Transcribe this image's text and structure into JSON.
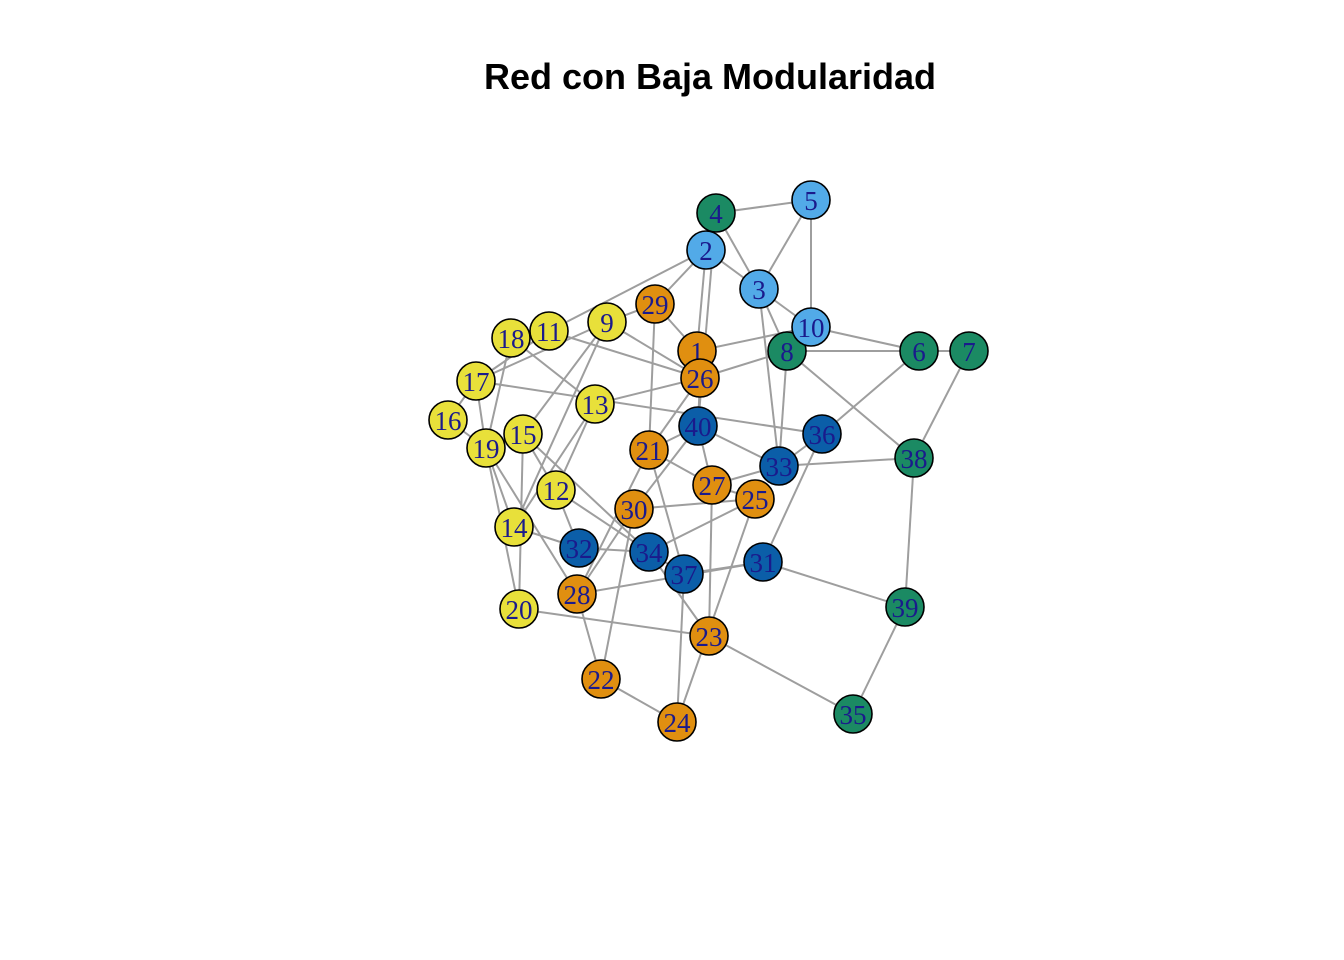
{
  "title": "Red con Baja Modularidad",
  "colors": {
    "community_1": "#e8e03a",
    "community_2": "#e08f10",
    "community_3": "#0b5ea8",
    "community_4": "#1b8a63",
    "community_5": "#52aae8",
    "edge": "#9e9e9e",
    "label": "#1a1a8c"
  },
  "nodes": [
    {
      "id": "1",
      "community": "community_2"
    },
    {
      "id": "2",
      "community": "community_5"
    },
    {
      "id": "3",
      "community": "community_5"
    },
    {
      "id": "4",
      "community": "community_4"
    },
    {
      "id": "5",
      "community": "community_5"
    },
    {
      "id": "6",
      "community": "community_4"
    },
    {
      "id": "7",
      "community": "community_4"
    },
    {
      "id": "8",
      "community": "community_4"
    },
    {
      "id": "9",
      "community": "community_1"
    },
    {
      "id": "10",
      "community": "community_5"
    },
    {
      "id": "11",
      "community": "community_1"
    },
    {
      "id": "12",
      "community": "community_1"
    },
    {
      "id": "13",
      "community": "community_1"
    },
    {
      "id": "14",
      "community": "community_1"
    },
    {
      "id": "15",
      "community": "community_1"
    },
    {
      "id": "16",
      "community": "community_1"
    },
    {
      "id": "17",
      "community": "community_1"
    },
    {
      "id": "18",
      "community": "community_1"
    },
    {
      "id": "19",
      "community": "community_1"
    },
    {
      "id": "20",
      "community": "community_1"
    },
    {
      "id": "21",
      "community": "community_2"
    },
    {
      "id": "22",
      "community": "community_2"
    },
    {
      "id": "23",
      "community": "community_2"
    },
    {
      "id": "24",
      "community": "community_2"
    },
    {
      "id": "25",
      "community": "community_2"
    },
    {
      "id": "26",
      "community": "community_2"
    },
    {
      "id": "27",
      "community": "community_2"
    },
    {
      "id": "28",
      "community": "community_2"
    },
    {
      "id": "29",
      "community": "community_2"
    },
    {
      "id": "30",
      "community": "community_2"
    },
    {
      "id": "31",
      "community": "community_3"
    },
    {
      "id": "32",
      "community": "community_3"
    },
    {
      "id": "33",
      "community": "community_3"
    },
    {
      "id": "34",
      "community": "community_3"
    },
    {
      "id": "35",
      "community": "community_4"
    },
    {
      "id": "36",
      "community": "community_3"
    },
    {
      "id": "37",
      "community": "community_3"
    },
    {
      "id": "38",
      "community": "community_4"
    },
    {
      "id": "39",
      "community": "community_4"
    },
    {
      "id": "40",
      "community": "community_3"
    }
  ],
  "edges": [
    [
      "4",
      "3"
    ],
    [
      "4",
      "5"
    ],
    [
      "4",
      "40"
    ],
    [
      "2",
      "3"
    ],
    [
      "2",
      "1"
    ],
    [
      "2",
      "11"
    ],
    [
      "2",
      "29"
    ],
    [
      "5",
      "3"
    ],
    [
      "5",
      "10"
    ],
    [
      "3",
      "10"
    ],
    [
      "3",
      "33"
    ],
    [
      "3",
      "8"
    ],
    [
      "29",
      "1"
    ],
    [
      "29",
      "21"
    ],
    [
      "29",
      "9"
    ],
    [
      "10",
      "6"
    ],
    [
      "10",
      "8"
    ],
    [
      "10",
      "1"
    ],
    [
      "8",
      "6"
    ],
    [
      "8",
      "38"
    ],
    [
      "8",
      "26"
    ],
    [
      "8",
      "33"
    ],
    [
      "6",
      "7"
    ],
    [
      "6",
      "36"
    ],
    [
      "7",
      "38"
    ],
    [
      "1",
      "26"
    ],
    [
      "9",
      "26"
    ],
    [
      "9",
      "17"
    ],
    [
      "9",
      "15"
    ],
    [
      "9",
      "14"
    ],
    [
      "11",
      "17"
    ],
    [
      "11",
      "26"
    ],
    [
      "18",
      "13"
    ],
    [
      "18",
      "19"
    ],
    [
      "17",
      "16"
    ],
    [
      "17",
      "36"
    ],
    [
      "17",
      "19"
    ],
    [
      "26",
      "13"
    ],
    [
      "26",
      "21"
    ],
    [
      "26",
      "40"
    ],
    [
      "13",
      "12"
    ],
    [
      "13",
      "14"
    ],
    [
      "16",
      "19"
    ],
    [
      "19",
      "15"
    ],
    [
      "19",
      "14"
    ],
    [
      "19",
      "20"
    ],
    [
      "19",
      "28"
    ],
    [
      "15",
      "20"
    ],
    [
      "15",
      "12"
    ],
    [
      "15",
      "34"
    ],
    [
      "40",
      "21"
    ],
    [
      "40",
      "27"
    ],
    [
      "40",
      "33"
    ],
    [
      "40",
      "30"
    ],
    [
      "21",
      "27"
    ],
    [
      "21",
      "37"
    ],
    [
      "21",
      "28"
    ],
    [
      "36",
      "33"
    ],
    [
      "36",
      "31"
    ],
    [
      "33",
      "38"
    ],
    [
      "33",
      "27"
    ],
    [
      "27",
      "25"
    ],
    [
      "27",
      "23"
    ],
    [
      "30",
      "25"
    ],
    [
      "30",
      "22"
    ],
    [
      "30",
      "28"
    ],
    [
      "25",
      "24"
    ],
    [
      "25",
      "34"
    ],
    [
      "32",
      "14"
    ],
    [
      "32",
      "34"
    ],
    [
      "32",
      "12"
    ],
    [
      "34",
      "37"
    ],
    [
      "34",
      "23"
    ],
    [
      "37",
      "31"
    ],
    [
      "37",
      "24"
    ],
    [
      "31",
      "39"
    ],
    [
      "31",
      "28"
    ],
    [
      "39",
      "38"
    ],
    [
      "39",
      "35"
    ],
    [
      "23",
      "35"
    ],
    [
      "23",
      "20"
    ],
    [
      "28",
      "22"
    ],
    [
      "22",
      "24"
    ],
    [
      "12",
      "34"
    ]
  ]
}
